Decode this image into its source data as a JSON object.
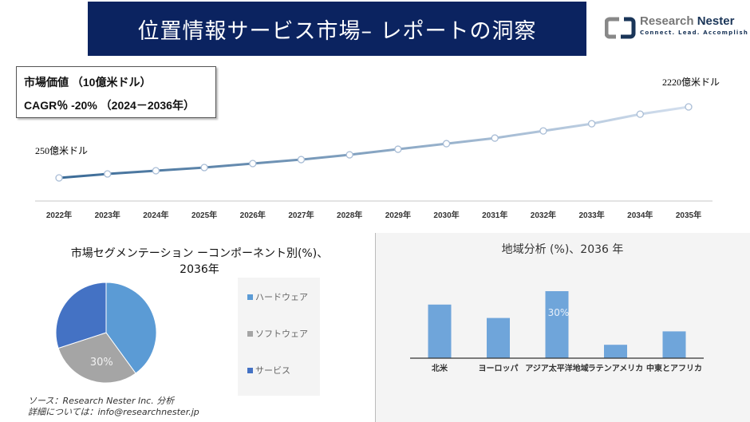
{
  "header": {
    "title": "位置情報サービス市場– レポートの洞察"
  },
  "logo": {
    "name_part1": "Research",
    "name_part2": "Nester",
    "tagline": "Connect. Lead. Accomplish"
  },
  "info": {
    "market_value": "市場価値 （10億米ドル）",
    "cagr": "CAGR％ -20% （2024－2036年）"
  },
  "colors": {
    "banner": "#0b2360",
    "line_start": "#3a6a96",
    "line_end": "#d3dfee",
    "hardware": "#5b9bd5",
    "software": "#a5a5a5",
    "service": "#4472c4",
    "bar": "#6fa5da"
  },
  "chart_data": [
    {
      "type": "line",
      "categories": [
        "2022年",
        "2023年",
        "2024年",
        "2025年",
        "2026年",
        "2027年",
        "2028年",
        "2029年",
        "2030年",
        "2031年",
        "2032年",
        "2033年",
        "2034年",
        "2035年"
      ],
      "values": [
        250,
        360,
        449,
        537,
        648,
        758,
        891,
        1046,
        1200,
        1355,
        1554,
        1753,
        2018,
        2220
      ],
      "annotations": {
        "start": "250億米ドル",
        "end": "2220億米ドル"
      },
      "grid": false
    },
    {
      "type": "pie",
      "title": "市場セグメンテーション ーコンポーネント別(%)、2036年",
      "title_line1": "市場セグメンテーション ーコンポーネント別(%)、",
      "title_line2": "2036年",
      "labels": [
        "ハードウェア",
        "ソフトウェア",
        "サービス"
      ],
      "values": [
        40,
        30,
        30
      ],
      "data_labels": [
        "",
        "30%",
        ""
      ],
      "legend": "right"
    },
    {
      "type": "bar",
      "title": "地域分析 (%)、2036 年",
      "categories": [
        "北米",
        "ヨーロッパ",
        "アジア太平洋地域",
        "ラテンアメリカ",
        "中東とアフリカ"
      ],
      "values": [
        24,
        18,
        30,
        6,
        12
      ],
      "data_labels": [
        "",
        "",
        "30%",
        "",
        ""
      ]
    }
  ],
  "footer": {
    "source": "ソース：Research Nester Inc. 分析",
    "contact": "詳細については：info@researchnester.jp"
  }
}
